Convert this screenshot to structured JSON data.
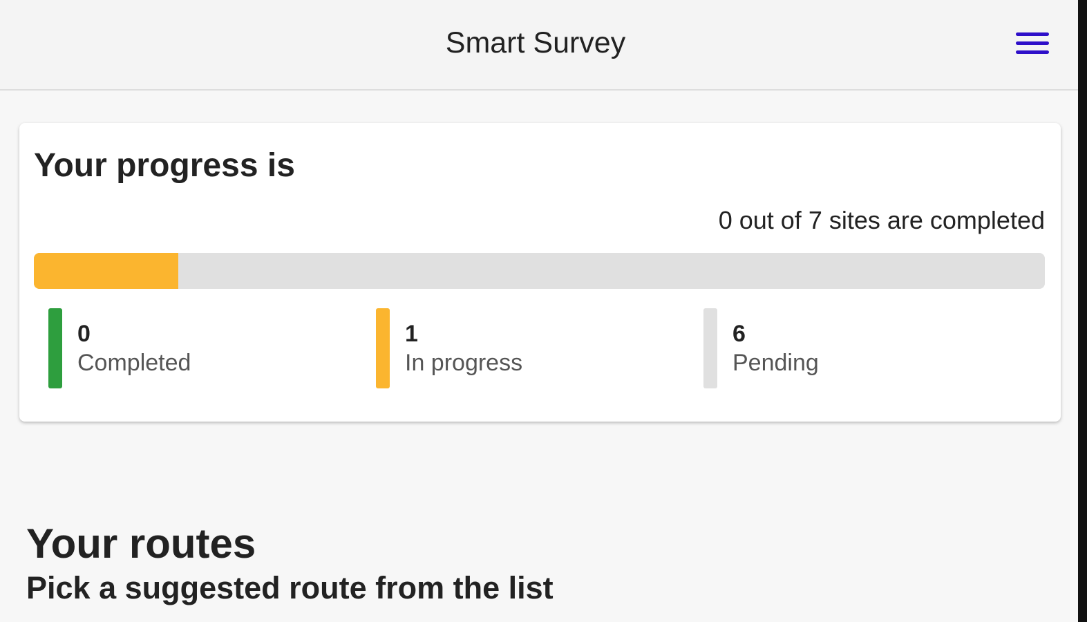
{
  "header": {
    "title": "Smart Survey",
    "menu_icon": "hamburger-menu-icon",
    "menu_color": "#2e0fc9"
  },
  "progress": {
    "heading": "Your progress is",
    "summary": "0 out of 7 sites are completed",
    "bar_fraction": 0.143,
    "colors": {
      "completed": "#2e9e3e",
      "in_progress": "#fbb52f",
      "pending": "#e0e0e0"
    },
    "legend": [
      {
        "count": "0",
        "label": "Completed"
      },
      {
        "count": "1",
        "label": "In progress"
      },
      {
        "count": "6",
        "label": "Pending"
      }
    ]
  },
  "routes": {
    "heading": "Your routes",
    "subheading": "Pick a suggested route from the list"
  }
}
